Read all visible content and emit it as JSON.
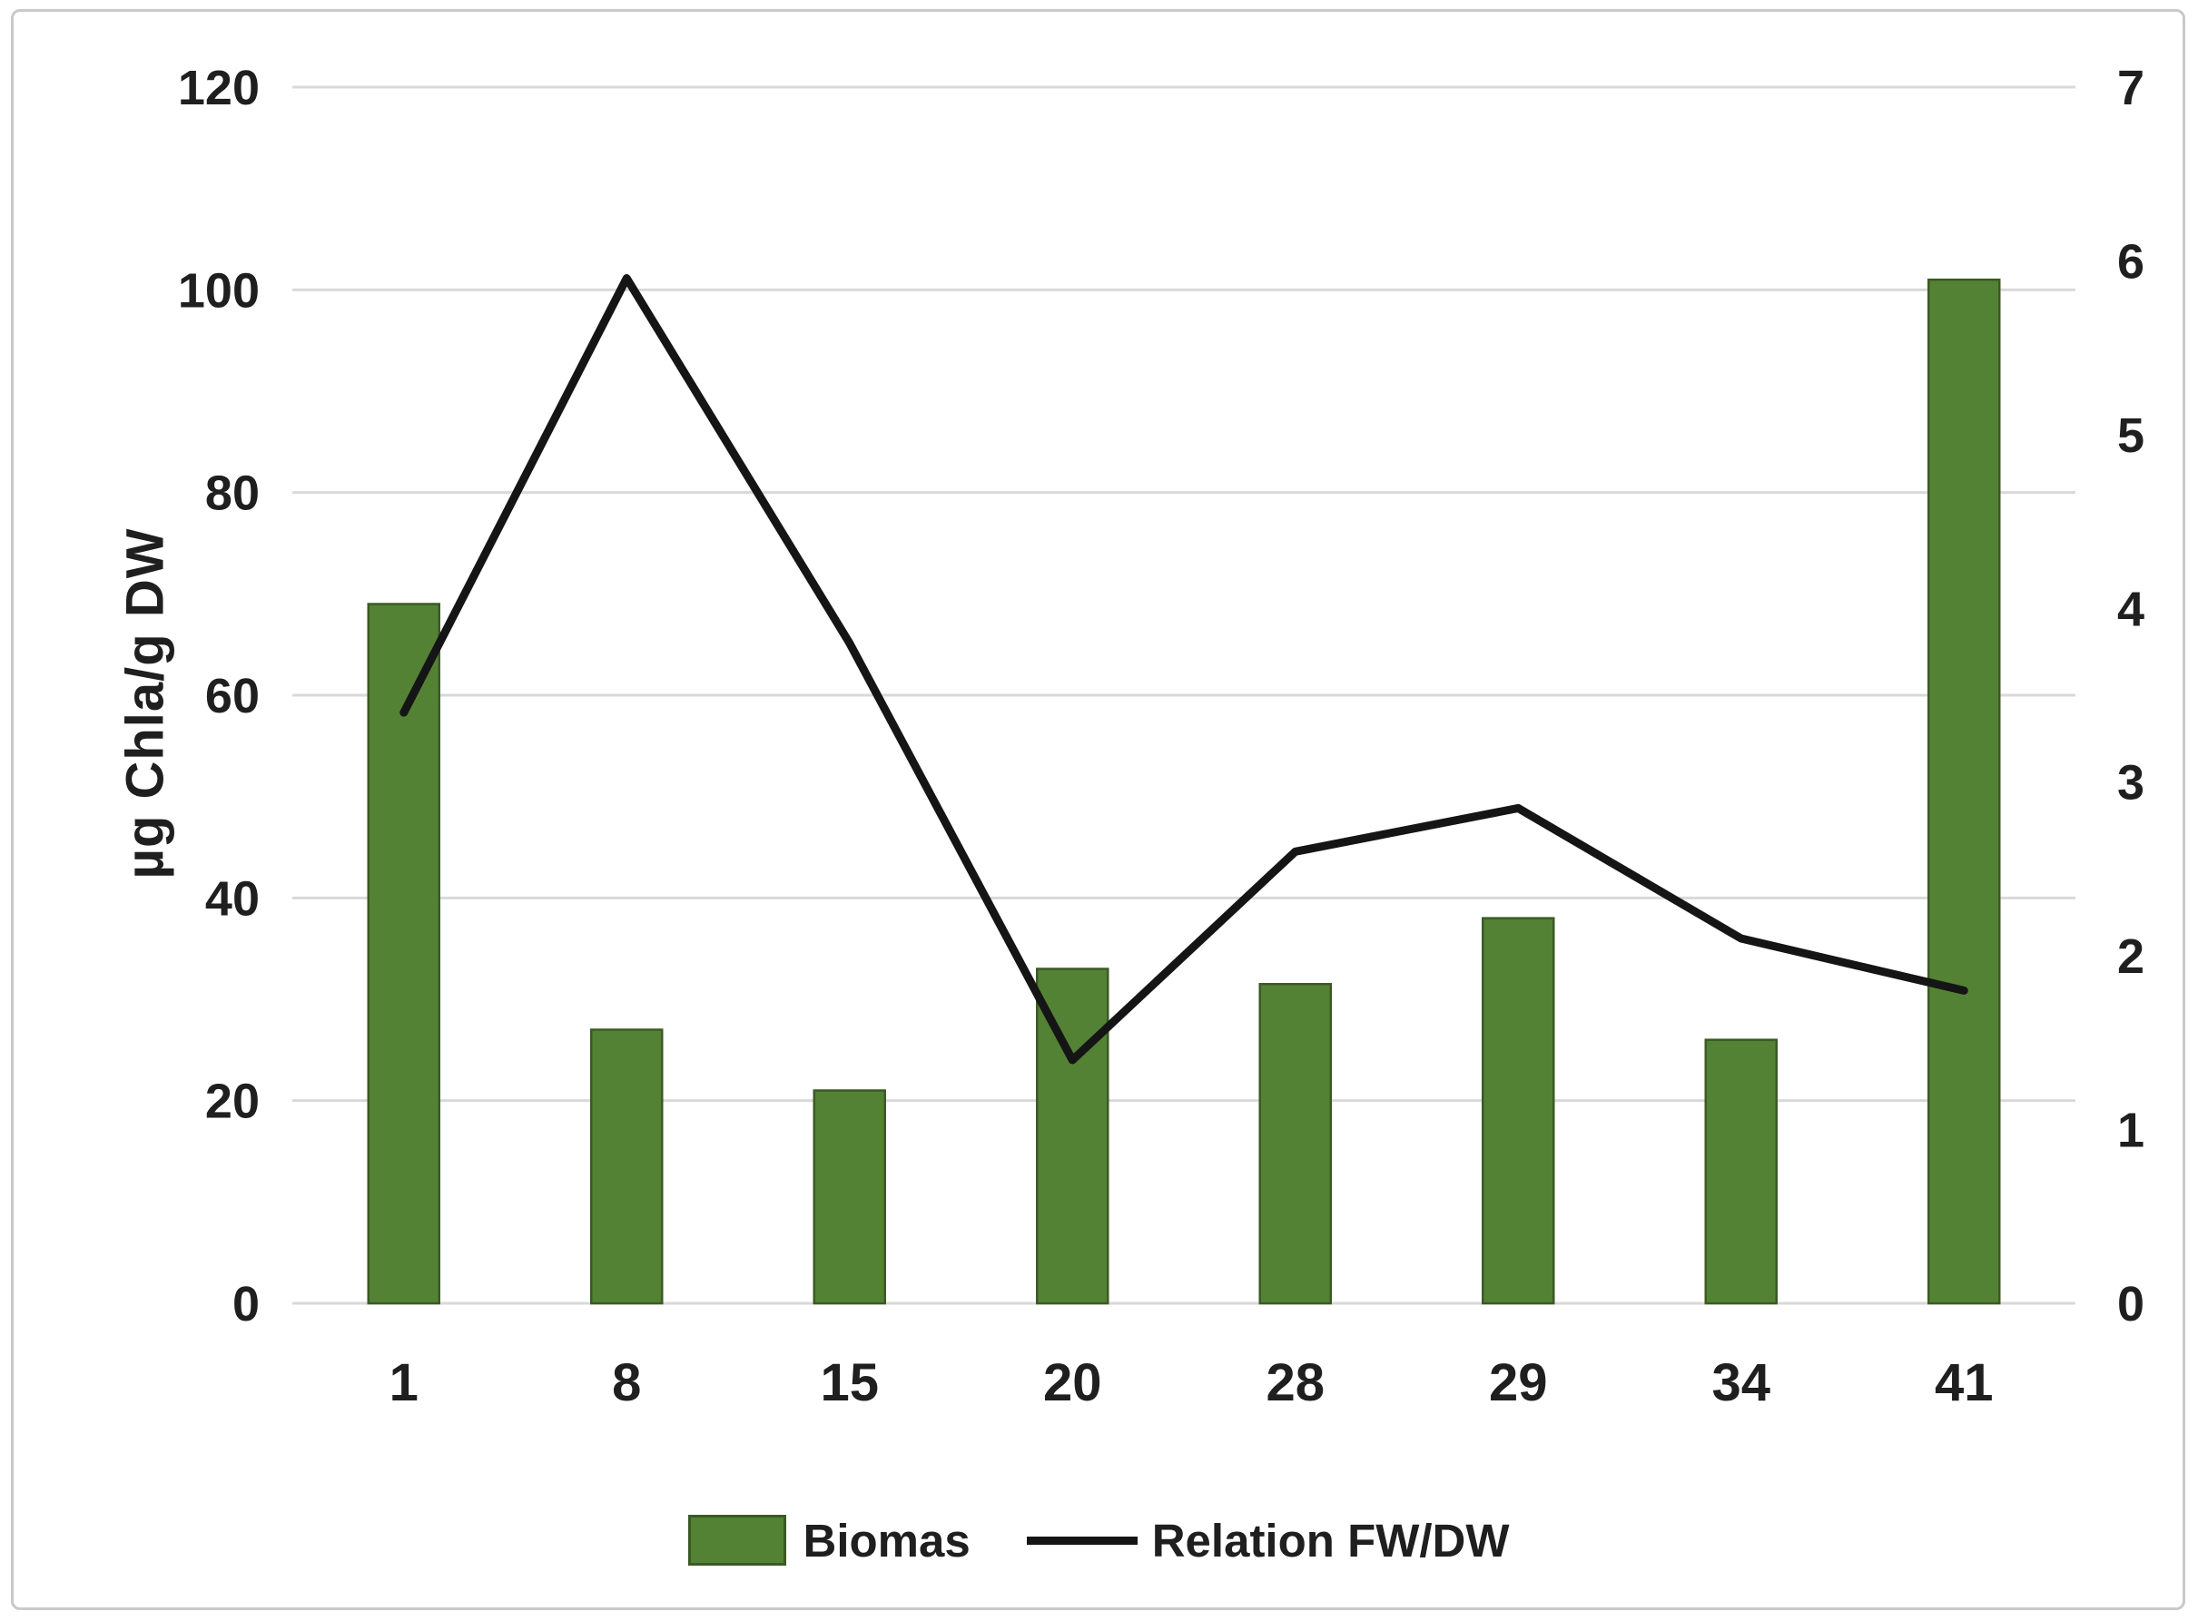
{
  "chart_data": {
    "type": "bar+line",
    "categories": [
      "1",
      "8",
      "15",
      "20",
      "28",
      "29",
      "34",
      "41"
    ],
    "series": [
      {
        "name": "Biomas",
        "type": "bar",
        "axis": "left",
        "values": [
          69,
          27,
          21,
          33,
          31.5,
          38,
          26,
          101
        ],
        "fill_color": "#548235",
        "border_color": "#3b5a23"
      },
      {
        "name": "Relation FW/DW",
        "type": "line",
        "axis": "right",
        "values": [
          3.4,
          5.9,
          3.8,
          1.4,
          2.6,
          2.85,
          2.1,
          1.8
        ],
        "color": "#151515"
      }
    ],
    "left_axis": {
      "label": "µg Chla/g DW",
      "min": 0,
      "max": 120,
      "tick_step": 20,
      "ticks": [
        0,
        20,
        40,
        60,
        80,
        100,
        120
      ]
    },
    "right_axis": {
      "min": 0,
      "max": 7,
      "tick_step": 1,
      "ticks": [
        0,
        1,
        2,
        3,
        4,
        5,
        6,
        7
      ]
    },
    "grid": true,
    "gridline_color": "#d9d9d9",
    "text_color": "#1f1f1f",
    "legend_position": "bottom"
  }
}
